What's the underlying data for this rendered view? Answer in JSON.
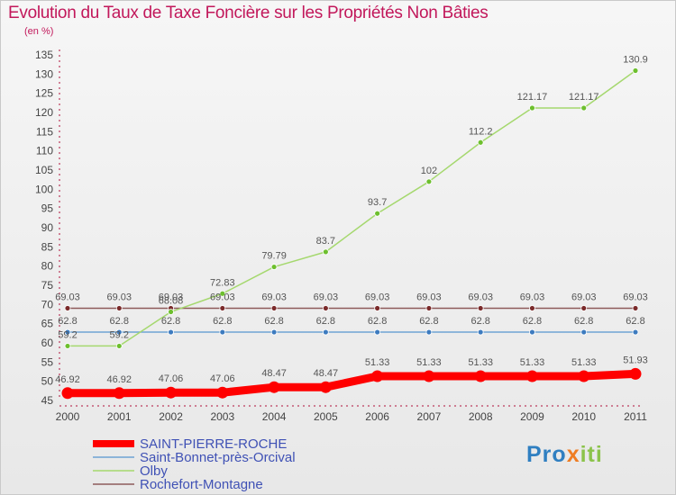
{
  "header": {
    "title": "Evolution du Taux de Taxe Foncière sur les Propriétés Non Bâties",
    "unit": "(en %)"
  },
  "logo": {
    "part1": "Pro",
    "part2": "x",
    "part3": "iti"
  },
  "chart_data": {
    "type": "line",
    "x": [
      "2000",
      "2001",
      "2002",
      "2003",
      "2004",
      "2005",
      "2006",
      "2007",
      "2008",
      "2009",
      "2010",
      "2011"
    ],
    "ylim": [
      45,
      135
    ],
    "yticks": [
      45,
      50,
      55,
      60,
      65,
      70,
      75,
      80,
      85,
      90,
      95,
      100,
      105,
      110,
      115,
      120,
      125,
      130,
      135
    ],
    "grid": false,
    "legend_position": "bottom-left",
    "series": [
      {
        "name": "SAINT-PIERRE-ROCHE",
        "color": "#ff0000",
        "width": "thick",
        "values": [
          46.92,
          46.92,
          47.06,
          47.06,
          48.47,
          48.47,
          51.33,
          51.33,
          51.33,
          51.33,
          51.33,
          51.93
        ],
        "labels": [
          "46.92",
          "46.92",
          "47.06",
          "47.06",
          "48.47",
          "48.47",
          "51.33",
          "51.33",
          "51.33",
          "51.33",
          "51.33",
          "51.93"
        ]
      },
      {
        "name": "Saint-Bonnet-près-Orcival",
        "color": "#6ea3d4",
        "marker": "#3d7bbf",
        "width": "thin",
        "values": [
          62.8,
          62.8,
          62.8,
          62.8,
          62.8,
          62.8,
          62.8,
          62.8,
          62.8,
          62.8,
          62.8,
          62.8
        ],
        "labels": [
          "62.8",
          "62.8",
          "62.8",
          "62.8",
          "62.8",
          "62.8",
          "62.8",
          "62.8",
          "62.8",
          "62.8",
          "62.8",
          "62.8"
        ]
      },
      {
        "name": "Olby",
        "color": "#a5d86e",
        "marker": "#6dbf2e",
        "width": "thin",
        "values": [
          59.2,
          59.2,
          68.08,
          72.83,
          79.79,
          83.7,
          93.7,
          102,
          112.2,
          121.17,
          121.17,
          130.9
        ],
        "labels": [
          "59.2",
          "59.2",
          "68.08",
          "72.83",
          "79.79",
          "83.7",
          "93.7",
          "102",
          "112.2",
          "121.17",
          "121.17",
          "130.9"
        ]
      },
      {
        "name": "Rochefort-Montagne",
        "color": "#8d5a5a",
        "marker": "#7a2a2a",
        "width": "thin",
        "values": [
          69.03,
          69.03,
          69.03,
          69.03,
          69.03,
          69.03,
          69.03,
          69.03,
          69.03,
          69.03,
          69.03,
          69.03
        ],
        "labels": [
          "69.03",
          "69.03",
          "69.03",
          "69.03",
          "69.03",
          "69.03",
          "69.03",
          "69.03",
          "69.03",
          "69.03",
          "69.03",
          "69.03"
        ]
      }
    ]
  }
}
